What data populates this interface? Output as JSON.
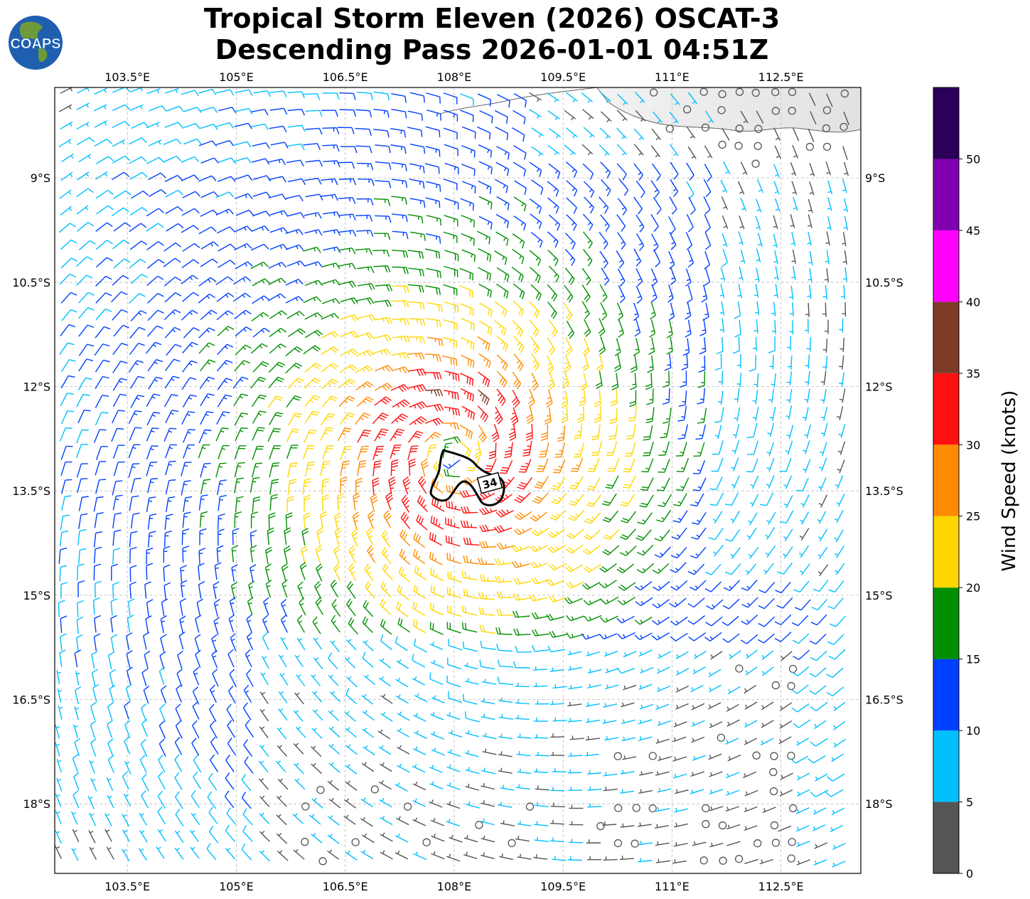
{
  "title": {
    "line1": "Tropical Storm Eleven (2026) OSCAT-3",
    "line2": "Descending Pass 2026-01-01 04:51Z"
  },
  "logo": {
    "text": "COAPS",
    "colors": {
      "ocean": "#1f5fb0",
      "land": "#6f9a3a",
      "text": "#ffffff"
    }
  },
  "map": {
    "lon_range": [
      102.5,
      113.6
    ],
    "lat_range": [
      -19.0,
      -7.7
    ],
    "x_ticks": [
      {
        "value": 103.5,
        "label": "103.5°E"
      },
      {
        "value": 105.0,
        "label": "105°E"
      },
      {
        "value": 106.5,
        "label": "106.5°E"
      },
      {
        "value": 108.0,
        "label": "108°E"
      },
      {
        "value": 109.5,
        "label": "109.5°E"
      },
      {
        "value": 111.0,
        "label": "111°E"
      },
      {
        "value": 112.5,
        "label": "112.5°E"
      }
    ],
    "y_ticks": [
      {
        "value": -9.0,
        "label": "9°S"
      },
      {
        "value": -10.5,
        "label": "10.5°S"
      },
      {
        "value": -12.0,
        "label": "12°S"
      },
      {
        "value": -13.5,
        "label": "13.5°S"
      },
      {
        "value": -15.0,
        "label": "15°S"
      },
      {
        "value": -16.5,
        "label": "16.5°S"
      },
      {
        "value": -18.0,
        "label": "18°S"
      }
    ],
    "grid": true,
    "storm_center": {
      "lon": 108.0,
      "lat": -13.0
    },
    "contour": {
      "label": "34",
      "units": "knots"
    }
  },
  "colorbar": {
    "label": "Wind Speed (knots)",
    "bins": [
      {
        "min": 0,
        "max": 5,
        "color": "#555555"
      },
      {
        "min": 5,
        "max": 10,
        "color": "#00bfff"
      },
      {
        "min": 10,
        "max": 15,
        "color": "#0040ff"
      },
      {
        "min": 15,
        "max": 20,
        "color": "#008f00"
      },
      {
        "min": 20,
        "max": 25,
        "color": "#ffd700"
      },
      {
        "min": 25,
        "max": 30,
        "color": "#ff8c00"
      },
      {
        "min": 30,
        "max": 35,
        "color": "#ff1010"
      },
      {
        "min": 35,
        "max": 40,
        "color": "#7f3a28"
      },
      {
        "min": 40,
        "max": 45,
        "color": "#ff00ff"
      },
      {
        "min": 45,
        "max": 50,
        "color": "#8000b0"
      },
      {
        "min": 50,
        "max": 55,
        "color": "#2a005a"
      }
    ],
    "tick_labels": [
      "0",
      "5",
      "10",
      "15",
      "20",
      "25",
      "30",
      "35",
      "40",
      "45",
      "50"
    ]
  }
}
